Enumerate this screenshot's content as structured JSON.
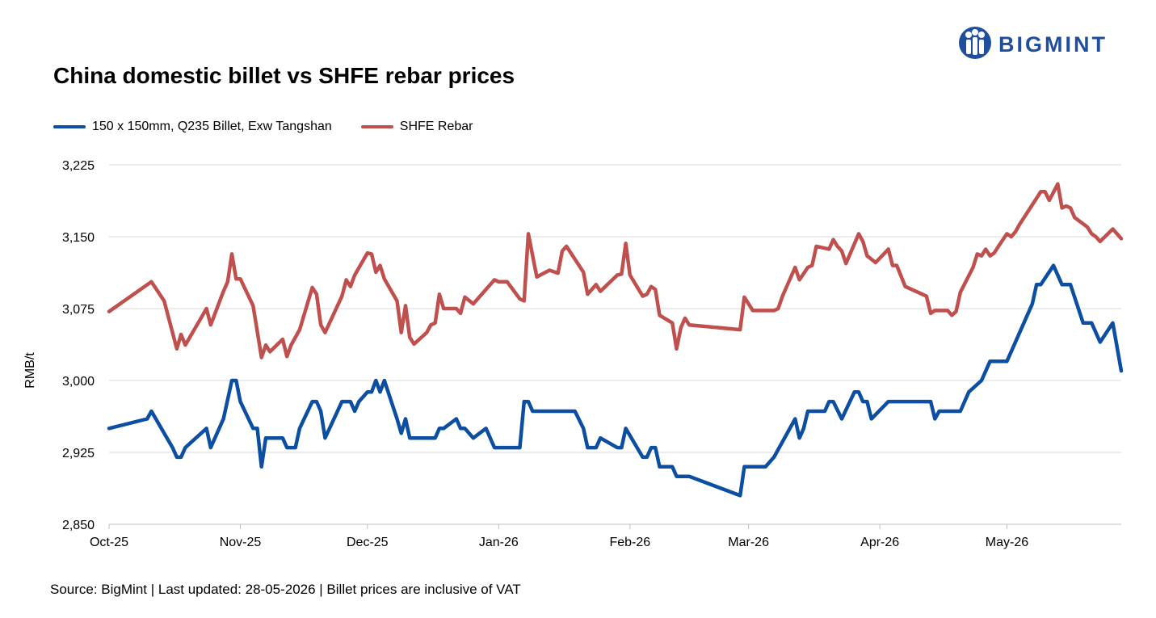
{
  "brand": {
    "name": "BIGMINT",
    "color": "#1f4e9c"
  },
  "title": "China domestic billet vs SHFE rebar prices",
  "source": "Source: BigMint | Last updated: 28-05-2026 | Billet prices are inclusive of VAT",
  "chart_data": {
    "type": "line",
    "title": "China domestic billet vs SHFE rebar prices",
    "ylabel": "RMB/t",
    "xlabel": "",
    "ylim": [
      2850,
      3225
    ],
    "yticks": [
      2850,
      2925,
      3000,
      3075,
      3150,
      3225
    ],
    "ytick_labels": [
      "2,850",
      "2,925",
      "3,000",
      "3,075",
      "3,150",
      "3,225"
    ],
    "xlim": [
      "2025-10-01",
      "2026-05-28"
    ],
    "xticks": [
      "2025-10-01",
      "2025-11-01",
      "2025-12-01",
      "2026-01-01",
      "2026-02-01",
      "2026-03-01",
      "2026-04-01",
      "2026-05-01"
    ],
    "xtick_labels": [
      "Oct-25",
      "Nov-25",
      "Dec-25",
      "Jan-26",
      "Feb-26",
      "Mar-26",
      "Apr-26",
      "May-26"
    ],
    "grid": "horizontal",
    "legend_position": "top-left",
    "series": [
      {
        "name": "150 x 150mm, Q235 Billet, Exw Tangshan",
        "color": "#0b4ea2",
        "points": [
          [
            "2025-10-01",
            2950
          ],
          [
            "2025-10-10",
            2960
          ],
          [
            "2025-10-11",
            2968
          ],
          [
            "2025-10-14",
            2945
          ],
          [
            "2025-10-16",
            2930
          ],
          [
            "2025-10-17",
            2920
          ],
          [
            "2025-10-18",
            2920
          ],
          [
            "2025-10-19",
            2930
          ],
          [
            "2025-10-24",
            2950
          ],
          [
            "2025-10-25",
            2930
          ],
          [
            "2025-10-28",
            2960
          ],
          [
            "2025-10-30",
            3000
          ],
          [
            "2025-10-31",
            3000
          ],
          [
            "2025-11-01",
            2978
          ],
          [
            "2025-11-04",
            2950
          ],
          [
            "2025-11-05",
            2950
          ],
          [
            "2025-11-06",
            2910
          ],
          [
            "2025-11-07",
            2940
          ],
          [
            "2025-11-11",
            2940
          ],
          [
            "2025-11-12",
            2930
          ],
          [
            "2025-11-14",
            2930
          ],
          [
            "2025-11-15",
            2950
          ],
          [
            "2025-11-18",
            2978
          ],
          [
            "2025-11-19",
            2978
          ],
          [
            "2025-11-20",
            2968
          ],
          [
            "2025-11-21",
            2940
          ],
          [
            "2025-11-25",
            2978
          ],
          [
            "2025-11-27",
            2978
          ],
          [
            "2025-11-28",
            2968
          ],
          [
            "2025-11-29",
            2978
          ],
          [
            "2025-12-01",
            2988
          ],
          [
            "2025-12-02",
            2988
          ],
          [
            "2025-12-03",
            3000
          ],
          [
            "2025-12-04",
            2988
          ],
          [
            "2025-12-05",
            3000
          ],
          [
            "2025-12-08",
            2960
          ],
          [
            "2025-12-09",
            2945
          ],
          [
            "2025-12-10",
            2960
          ],
          [
            "2025-12-11",
            2940
          ],
          [
            "2025-12-17",
            2940
          ],
          [
            "2025-12-18",
            2950
          ],
          [
            "2025-12-19",
            2950
          ],
          [
            "2025-12-22",
            2960
          ],
          [
            "2025-12-23",
            2950
          ],
          [
            "2025-12-24",
            2950
          ],
          [
            "2025-12-26",
            2940
          ],
          [
            "2025-12-29",
            2950
          ],
          [
            "2025-12-31",
            2930
          ],
          [
            "2026-01-06",
            2930
          ],
          [
            "2026-01-07",
            2978
          ],
          [
            "2026-01-08",
            2978
          ],
          [
            "2026-01-09",
            2968
          ],
          [
            "2026-01-19",
            2968
          ],
          [
            "2026-01-21",
            2950
          ],
          [
            "2026-01-22",
            2930
          ],
          [
            "2026-01-24",
            2930
          ],
          [
            "2026-01-25",
            2940
          ],
          [
            "2026-01-29",
            2930
          ],
          [
            "2026-01-30",
            2930
          ],
          [
            "2026-01-31",
            2950
          ],
          [
            "2026-02-02",
            2935
          ],
          [
            "2026-02-04",
            2920
          ],
          [
            "2026-02-05",
            2920
          ],
          [
            "2026-02-06",
            2930
          ],
          [
            "2026-02-07",
            2930
          ],
          [
            "2026-02-08",
            2910
          ],
          [
            "2026-02-11",
            2910
          ],
          [
            "2026-02-12",
            2900
          ],
          [
            "2026-02-15",
            2900
          ],
          [
            "2026-02-27",
            2880
          ],
          [
            "2026-02-28",
            2910
          ],
          [
            "2026-03-05",
            2910
          ],
          [
            "2026-03-07",
            2920
          ],
          [
            "2026-03-12",
            2960
          ],
          [
            "2026-03-13",
            2940
          ],
          [
            "2026-03-14",
            2950
          ],
          [
            "2026-03-15",
            2968
          ],
          [
            "2026-03-19",
            2968
          ],
          [
            "2026-03-20",
            2978
          ],
          [
            "2026-03-21",
            2978
          ],
          [
            "2026-03-23",
            2960
          ],
          [
            "2026-03-26",
            2988
          ],
          [
            "2026-03-27",
            2988
          ],
          [
            "2026-03-28",
            2978
          ],
          [
            "2026-03-29",
            2978
          ],
          [
            "2026-03-30",
            2960
          ],
          [
            "2026-04-03",
            2978
          ],
          [
            "2026-04-13",
            2978
          ],
          [
            "2026-04-14",
            2960
          ],
          [
            "2026-04-15",
            2968
          ],
          [
            "2026-04-20",
            2968
          ],
          [
            "2026-04-22",
            2988
          ],
          [
            "2026-04-25",
            3000
          ],
          [
            "2026-04-27",
            3020
          ],
          [
            "2026-05-01",
            3020
          ],
          [
            "2026-05-02",
            3030
          ],
          [
            "2026-05-07",
            3080
          ],
          [
            "2026-05-08",
            3100
          ],
          [
            "2026-05-09",
            3100
          ],
          [
            "2026-05-12",
            3120
          ],
          [
            "2026-05-14",
            3100
          ],
          [
            "2026-05-16",
            3100
          ],
          [
            "2026-05-19",
            3060
          ],
          [
            "2026-05-21",
            3060
          ],
          [
            "2026-05-23",
            3040
          ],
          [
            "2026-05-26",
            3060
          ],
          [
            "2026-05-28",
            3010
          ]
        ]
      },
      {
        "name": "SHFE Rebar",
        "color": "#c0504d",
        "points": [
          [
            "2025-10-01",
            3072
          ],
          [
            "2025-10-11",
            3103
          ],
          [
            "2025-10-14",
            3083
          ],
          [
            "2025-10-17",
            3033
          ],
          [
            "2025-10-18",
            3048
          ],
          [
            "2025-10-19",
            3037
          ],
          [
            "2025-10-24",
            3075
          ],
          [
            "2025-10-25",
            3058
          ],
          [
            "2025-10-28",
            3093
          ],
          [
            "2025-10-29",
            3103
          ],
          [
            "2025-10-30",
            3132
          ],
          [
            "2025-10-31",
            3106
          ],
          [
            "2025-11-01",
            3106
          ],
          [
            "2025-11-04",
            3078
          ],
          [
            "2025-11-06",
            3024
          ],
          [
            "2025-11-07",
            3037
          ],
          [
            "2025-11-08",
            3030
          ],
          [
            "2025-11-11",
            3043
          ],
          [
            "2025-11-12",
            3025
          ],
          [
            "2025-11-13",
            3037
          ],
          [
            "2025-11-15",
            3053
          ],
          [
            "2025-11-18",
            3097
          ],
          [
            "2025-11-19",
            3090
          ],
          [
            "2025-11-20",
            3058
          ],
          [
            "2025-11-21",
            3050
          ],
          [
            "2025-11-25",
            3088
          ],
          [
            "2025-11-26",
            3105
          ],
          [
            "2025-11-27",
            3098
          ],
          [
            "2025-11-28",
            3110
          ],
          [
            "2025-12-01",
            3133
          ],
          [
            "2025-12-02",
            3132
          ],
          [
            "2025-12-03",
            3113
          ],
          [
            "2025-12-04",
            3120
          ],
          [
            "2025-12-05",
            3106
          ],
          [
            "2025-12-08",
            3083
          ],
          [
            "2025-12-09",
            3050
          ],
          [
            "2025-12-10",
            3078
          ],
          [
            "2025-12-11",
            3045
          ],
          [
            "2025-12-12",
            3038
          ],
          [
            "2025-12-15",
            3050
          ],
          [
            "2025-12-16",
            3058
          ],
          [
            "2025-12-17",
            3060
          ],
          [
            "2025-12-18",
            3090
          ],
          [
            "2025-12-19",
            3075
          ],
          [
            "2025-12-22",
            3075
          ],
          [
            "2025-12-23",
            3070
          ],
          [
            "2025-12-24",
            3087
          ],
          [
            "2025-12-26",
            3080
          ],
          [
            "2025-12-29",
            3095
          ],
          [
            "2025-12-31",
            3105
          ],
          [
            "2026-01-01",
            3103
          ],
          [
            "2026-01-03",
            3103
          ],
          [
            "2026-01-06",
            3085
          ],
          [
            "2026-01-07",
            3083
          ],
          [
            "2026-01-08",
            3153
          ],
          [
            "2026-01-10",
            3108
          ],
          [
            "2026-01-13",
            3115
          ],
          [
            "2026-01-15",
            3112
          ],
          [
            "2026-01-16",
            3135
          ],
          [
            "2026-01-17",
            3140
          ],
          [
            "2026-01-21",
            3113
          ],
          [
            "2026-01-22",
            3090
          ],
          [
            "2026-01-24",
            3100
          ],
          [
            "2026-01-25",
            3093
          ],
          [
            "2026-01-29",
            3110
          ],
          [
            "2026-01-30",
            3111
          ],
          [
            "2026-01-31",
            3143
          ],
          [
            "2026-02-01",
            3110
          ],
          [
            "2026-02-04",
            3088
          ],
          [
            "2026-02-05",
            3090
          ],
          [
            "2026-02-06",
            3098
          ],
          [
            "2026-02-07",
            3095
          ],
          [
            "2026-02-08",
            3068
          ],
          [
            "2026-02-11",
            3060
          ],
          [
            "2026-02-12",
            3033
          ],
          [
            "2026-02-13",
            3055
          ],
          [
            "2026-02-14",
            3065
          ],
          [
            "2026-02-15",
            3058
          ],
          [
            "2026-02-27",
            3053
          ],
          [
            "2026-02-28",
            3087
          ],
          [
            "2026-03-02",
            3073
          ],
          [
            "2026-03-07",
            3073
          ],
          [
            "2026-03-08",
            3075
          ],
          [
            "2026-03-09",
            3088
          ],
          [
            "2026-03-12",
            3118
          ],
          [
            "2026-03-13",
            3105
          ],
          [
            "2026-03-15",
            3118
          ],
          [
            "2026-03-16",
            3120
          ],
          [
            "2026-03-17",
            3140
          ],
          [
            "2026-03-20",
            3137
          ],
          [
            "2026-03-21",
            3147
          ],
          [
            "2026-03-22",
            3140
          ],
          [
            "2026-03-23",
            3135
          ],
          [
            "2026-03-24",
            3122
          ],
          [
            "2026-03-27",
            3153
          ],
          [
            "2026-03-28",
            3145
          ],
          [
            "2026-03-29",
            3130
          ],
          [
            "2026-03-31",
            3123
          ],
          [
            "2026-04-03",
            3137
          ],
          [
            "2026-04-04",
            3120
          ],
          [
            "2026-04-05",
            3120
          ],
          [
            "2026-04-07",
            3098
          ],
          [
            "2026-04-11",
            3090
          ],
          [
            "2026-04-12",
            3088
          ],
          [
            "2026-04-13",
            3070
          ],
          [
            "2026-04-14",
            3073
          ],
          [
            "2026-04-17",
            3073
          ],
          [
            "2026-04-18",
            3068
          ],
          [
            "2026-04-19",
            3072
          ],
          [
            "2026-04-20",
            3092
          ],
          [
            "2026-04-23",
            3118
          ],
          [
            "2026-04-24",
            3132
          ],
          [
            "2026-04-25",
            3130
          ],
          [
            "2026-04-26",
            3137
          ],
          [
            "2026-04-27",
            3130
          ],
          [
            "2026-04-28",
            3133
          ],
          [
            "2026-04-29",
            3140
          ],
          [
            "2026-05-01",
            3153
          ],
          [
            "2026-05-02",
            3150
          ],
          [
            "2026-05-03",
            3155
          ],
          [
            "2026-05-04",
            3163
          ],
          [
            "2026-05-08",
            3190
          ],
          [
            "2026-05-09",
            3197
          ],
          [
            "2026-05-10",
            3197
          ],
          [
            "2026-05-11",
            3188
          ],
          [
            "2026-05-13",
            3205
          ],
          [
            "2026-05-14",
            3180
          ],
          [
            "2026-05-15",
            3182
          ],
          [
            "2026-05-16",
            3180
          ],
          [
            "2026-05-17",
            3170
          ],
          [
            "2026-05-20",
            3160
          ],
          [
            "2026-05-21",
            3153
          ],
          [
            "2026-05-22",
            3150
          ],
          [
            "2026-05-23",
            3145
          ],
          [
            "2026-05-26",
            3158
          ],
          [
            "2026-05-28",
            3148
          ]
        ]
      }
    ]
  }
}
